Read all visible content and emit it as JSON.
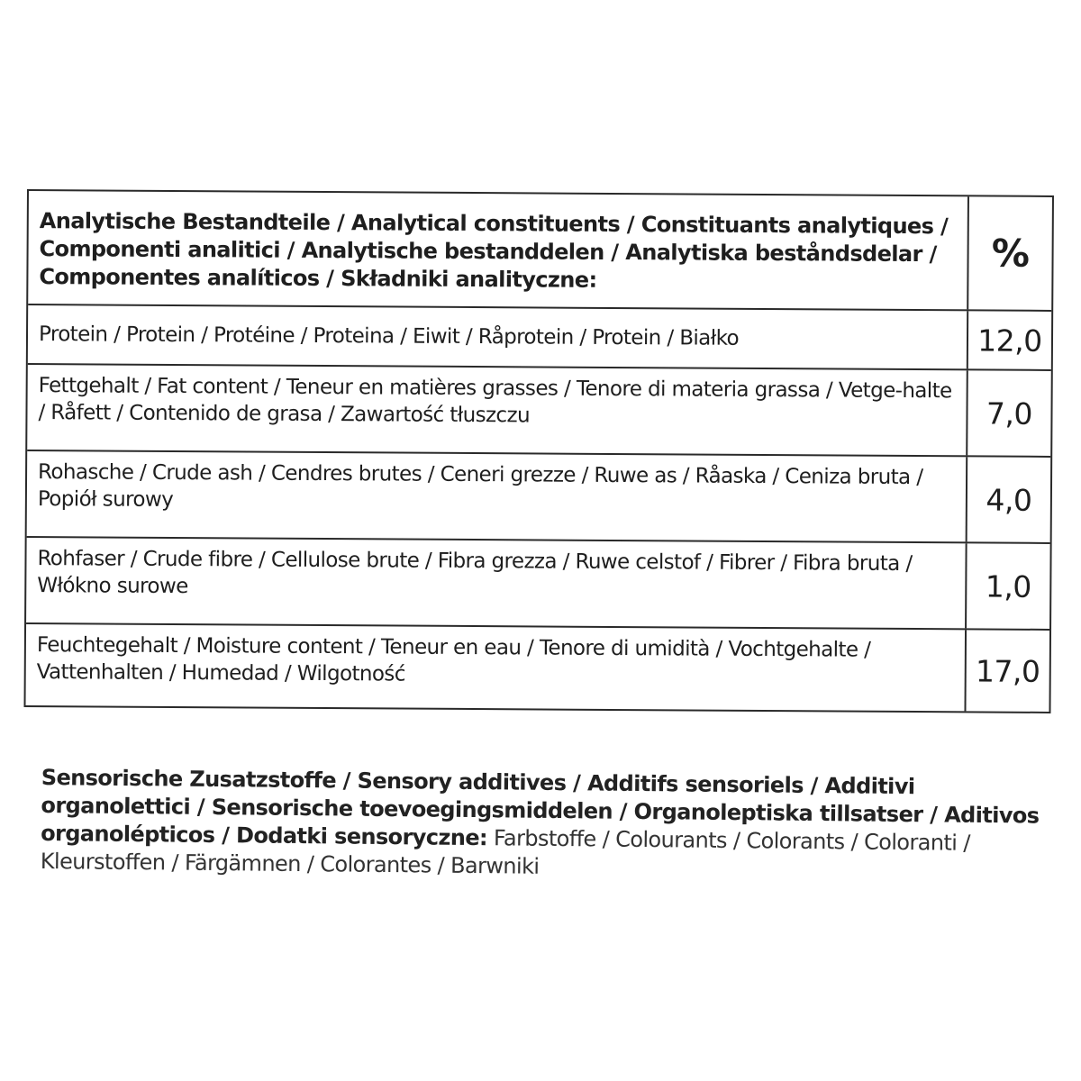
{
  "table": {
    "header": {
      "label": "Analytische Bestandteile / Analytical constituents / Constituants analytiques / Componenti analitici / Analytische bestanddelen / Analytiska beståndsdelar / Componentes analíticos / Składniki analityczne:",
      "unit": "%"
    },
    "rows": [
      {
        "label": "Protein / Protein / Protéine / Proteina / Eiwit / Råprotein / Protein / Białko",
        "value": "12,0"
      },
      {
        "label": "Fettgehalt / Fat content / Teneur en matières grasses / Tenore di materia grassa / Vetge-halte / Råfett / Contenido de grasa / Zawartość tłuszczu",
        "value": "7,0"
      },
      {
        "label": "Rohasche / Crude ash / Cendres brutes / Ceneri grezze / Ruwe as / Råaska / Ceniza bruta / Popiół surowy",
        "value": "4,0"
      },
      {
        "label": "Rohfaser / Crude fibre / Cellulose brute / Fibra grezza / Ruwe celstof / Fibrer / Fibra bruta / Włókno surowe",
        "value": "1,0"
      },
      {
        "label": "Feuchtegehalt / Moisture content / Teneur en eau / Tenore di umidità / Vochtgehalte / Vattenhalten / Humedad / Wilgotność",
        "value": "17,0"
      }
    ]
  },
  "additives": {
    "heading": "Sensorische Zusatzstoffe / Sensory additives / Additifs sensoriels / Additivi organolettici / Sensorische toevoegingsmiddelen / Organoleptiska tillsatser / Aditivos organolépticos / Dodatki sensoryczne:",
    "text": "Farbstoffe / Colourants / Colorants / Coloranti / Kleurstoffen / Färgämnen / Colorantes / Barwniki"
  }
}
